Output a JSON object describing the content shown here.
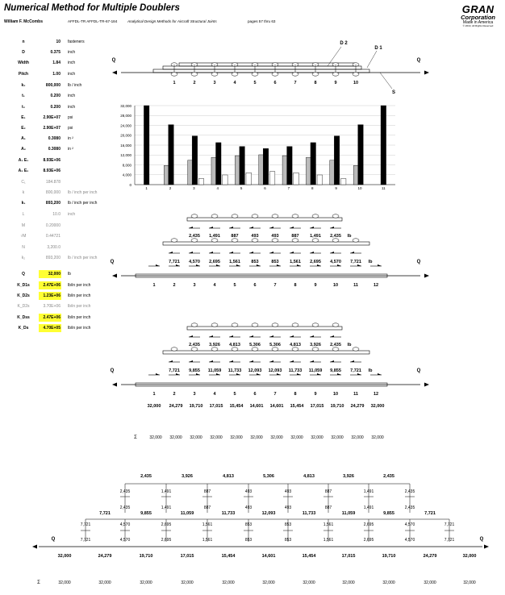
{
  "header": {
    "title": "Numerical Method for Multiple Doublers",
    "author": "William F. McCombs",
    "doc_number": "AFFDL-TR AFFDL-TR-67-184",
    "doc_title": "Analytical Design Methods for Aircraft Structural Joints",
    "pages": "pages 57 thru 63"
  },
  "logo": {
    "brand": "GRAN",
    "company": "Corporation",
    "made": "Made in America",
    "rights": "© 2010, All Rights Reserved"
  },
  "params": [
    {
      "label": "n",
      "value": "10",
      "unit": "fasteners"
    },
    {
      "label": "D",
      "value": "0.375",
      "unit": "inch"
    },
    {
      "label": "Width",
      "value": "1.84",
      "unit": "inch"
    },
    {
      "label": "Pitch",
      "value": "1.00",
      "unit": "inch"
    },
    {
      "label": "k₂",
      "value": "800,000",
      "unit": "lb / inch"
    },
    {
      "label": "t₁",
      "value": "0.200",
      "unit": "inch"
    },
    {
      "label": "t₂",
      "value": "0.200",
      "unit": "inch"
    },
    {
      "label": "E₁",
      "value": "2.90E+07",
      "unit": "psi"
    },
    {
      "label": "E₂",
      "value": "2.90E+07",
      "unit": "psi"
    },
    {
      "label": "A₁",
      "value": "0.3080",
      "unit": "in ²"
    },
    {
      "label": "A₂",
      "value": "0.3080",
      "unit": "in ²"
    },
    {
      "label": "A₁ E₁",
      "value": "8.93E+06",
      "unit": ""
    },
    {
      "label": "A₂ E₂",
      "value": "8.93E+06",
      "unit": ""
    },
    {
      "label": "C₁",
      "value": "184.878",
      "unit": "",
      "dim": true
    },
    {
      "label": "k",
      "value": "800,000",
      "unit": "lb / inch per inch",
      "dim": true
    },
    {
      "label": "k₁",
      "value": "893,200",
      "unit": "lb / inch per inch"
    },
    {
      "label": "L",
      "value": "10.0",
      "unit": "inch",
      "dim": true
    },
    {
      "label": "M",
      "value": "0.20000",
      "unit": "",
      "dim": true
    },
    {
      "label": "√M",
      "value": "0.44721",
      "unit": "",
      "dim": true
    },
    {
      "label": "N",
      "value": "3,200.0",
      "unit": "",
      "dim": true
    },
    {
      "label": "k₂",
      "value": "893,200",
      "unit": "lb / inch per inch",
      "dim": true
    },
    {
      "label": "Q",
      "value": "32,000",
      "unit": "lb",
      "hl": true
    },
    {
      "label": "K_D1s",
      "value": "2.47E+06",
      "unit": "lb/in per inch",
      "hl": true
    },
    {
      "label": "K_D2s",
      "value": "1.23E+06",
      "unit": "lb/in per inch",
      "hl": true
    },
    {
      "label": "K_D2s",
      "value": "3.70E+06",
      "unit": "lb/in per inch",
      "dim": true
    },
    {
      "label": "K_Dss",
      "value": "2.47E+06",
      "unit": "lb/in per inch",
      "hl": true
    },
    {
      "label": "K_Ds",
      "value": "4.70E+05",
      "unit": "lb/in per inch",
      "hl": true
    }
  ],
  "joint1": {
    "q": "Q",
    "d1": "D 1",
    "d2": "D 2",
    "s": "S",
    "fasteners": [
      "1",
      "2",
      "3",
      "4",
      "5",
      "6",
      "7",
      "8",
      "9",
      "10"
    ]
  },
  "chart_data": {
    "type": "bar",
    "categories": [
      "1",
      "2",
      "3",
      "4",
      "5",
      "6",
      "7",
      "8",
      "9",
      "10",
      "11"
    ],
    "series": [
      {
        "values": [
          32000,
          24279,
          19710,
          17015,
          15454,
          14601,
          15454,
          17015,
          19710,
          24279,
          32000
        ],
        "color": "#000000"
      },
      {
        "values": [
          0,
          7721,
          9855,
          11059,
          11733,
          12093,
          11733,
          11059,
          9855,
          7721,
          0
        ],
        "color": "#bbbbbb"
      },
      {
        "values": [
          0,
          0,
          2435,
          3926,
          4813,
          5306,
          4813,
          3926,
          2435,
          0,
          0
        ],
        "color": "#ffffff"
      }
    ],
    "yticks": [
      "0",
      "4,000",
      "8,000",
      "12,000",
      "16,000",
      "20,000",
      "24,000",
      "28,000",
      "32,000"
    ],
    "ylim": [
      0,
      32000
    ]
  },
  "diag2": {
    "d2_loads": [
      "2,435",
      "1,491",
      "887",
      "493",
      "493",
      "887",
      "1,491",
      "2,435"
    ],
    "d1_loads": [
      "7,721",
      "4,570",
      "2,695",
      "1,561",
      "853",
      "853",
      "1,561",
      "2,695",
      "4,570",
      "7,721"
    ],
    "unit": "lb",
    "q": "Q",
    "stations": [
      "1",
      "2",
      "3",
      "4",
      "5",
      "6",
      "7",
      "8",
      "9",
      "10",
      "11",
      "12"
    ]
  },
  "diag3": {
    "d2_loads": [
      "2,435",
      "3,926",
      "4,813",
      "5,306",
      "5,306",
      "4,813",
      "3,926",
      "2,435"
    ],
    "d1_loads": [
      "7,721",
      "9,855",
      "11,059",
      "11,733",
      "12,093",
      "12,093",
      "11,733",
      "11,059",
      "9,855",
      "7,721"
    ],
    "unit": "lb",
    "q": "Q",
    "stations": [
      "1",
      "2",
      "3",
      "4",
      "5",
      "6",
      "7",
      "8",
      "9",
      "10",
      "11",
      "12"
    ],
    "skin_loads": [
      "32,000",
      "24,279",
      "19,710",
      "17,015",
      "15,454",
      "14,601",
      "14,601",
      "15,454",
      "17,015",
      "19,710",
      "24,279",
      "32,000"
    ]
  },
  "sigma1": {
    "label": "Σ",
    "values": [
      "32,000",
      "32,000",
      "32,000",
      "32,000",
      "32,000",
      "32,000",
      "32,000",
      "32,000",
      "32,000",
      "32,000",
      "32,000",
      "32,000"
    ]
  },
  "bottom": {
    "top_loads": [
      "2,435",
      "3,926",
      "4,813",
      "5,306",
      "4,813",
      "3,926",
      "2,435"
    ],
    "d2_fast_a": [
      "2,435",
      "1,491",
      "887",
      "493",
      "493",
      "887",
      "1,491",
      "2,435"
    ],
    "d2_fast_b": [
      "2,435",
      "1,491",
      "887",
      "493",
      "493",
      "887",
      "1,491",
      "2,435"
    ],
    "mid_loads": [
      "7,721",
      "9,855",
      "11,059",
      "11,733",
      "12,093",
      "11,733",
      "11,059",
      "9,855",
      "7,721"
    ],
    "d1_fast_a": [
      "7,721",
      "4,570",
      "2,695",
      "1,561",
      "853",
      "853",
      "1,561",
      "2,695",
      "4,570",
      "7,721"
    ],
    "d1_fast_b": [
      "7,721",
      "4,570",
      "2,695",
      "1,561",
      "853",
      "853",
      "1,561",
      "2,695",
      "4,570",
      "7,721"
    ],
    "skin_loads": [
      "32,000",
      "24,279",
      "19,710",
      "17,015",
      "15,454",
      "14,601",
      "15,454",
      "17,015",
      "19,710",
      "24,279",
      "32,000"
    ],
    "q": "Q"
  },
  "sigma2": {
    "label": "Σ",
    "values": [
      "32,000",
      "32,000",
      "32,000",
      "32,000",
      "32,000",
      "32,000",
      "32,000",
      "32,000",
      "32,000",
      "32,000",
      "32,000",
      "32,000"
    ]
  }
}
